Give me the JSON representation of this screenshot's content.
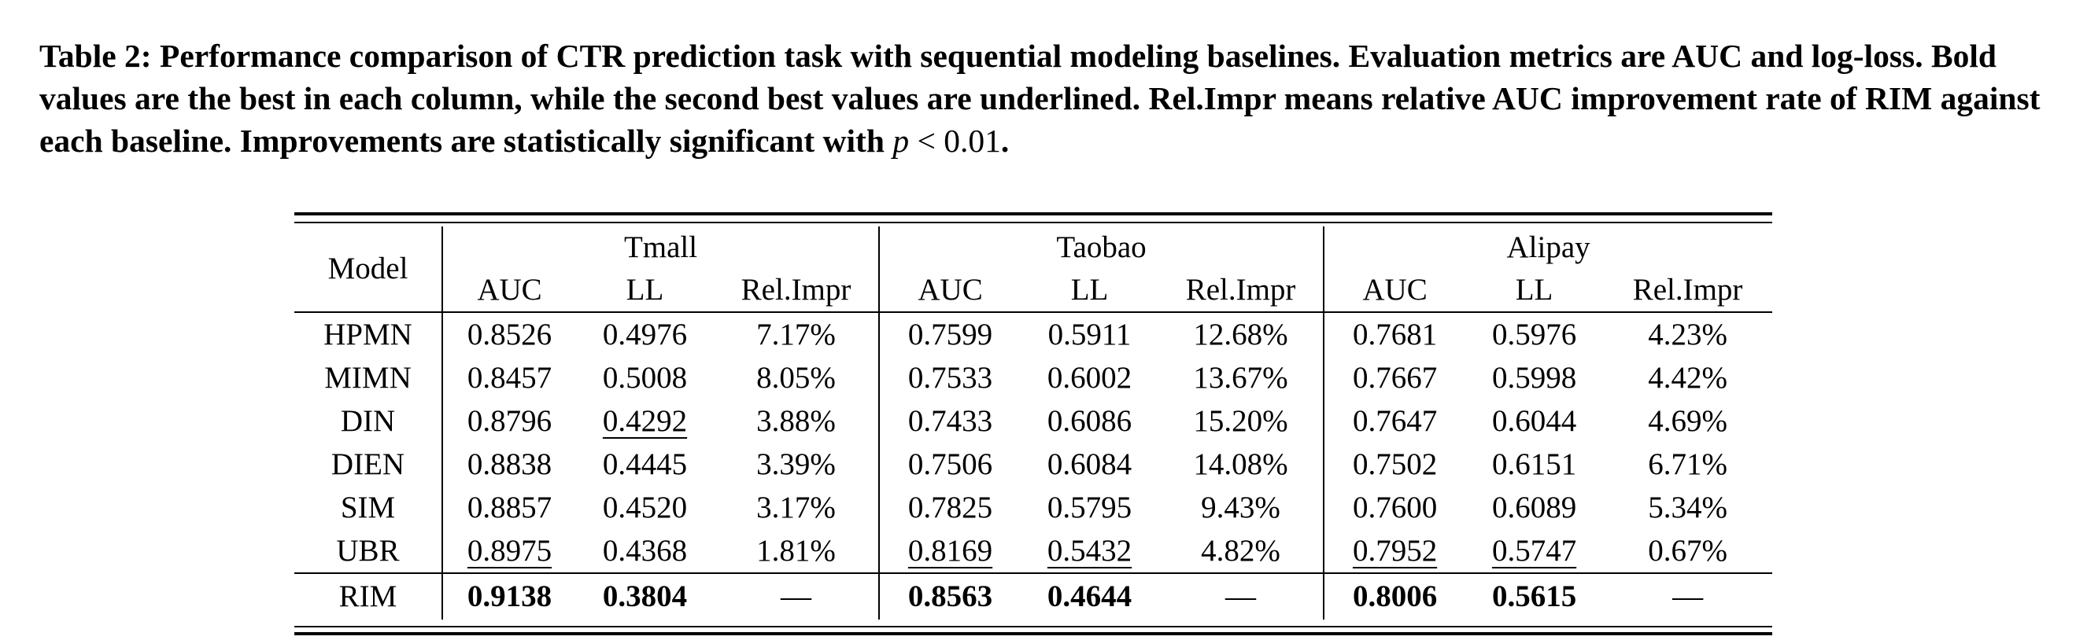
{
  "caption": {
    "label": "Table 2:",
    "text": "Performance comparison of CTR prediction task with sequential modeling baselines. Evaluation metrics are AUC and log-loss. Bold values are the best in each column, while the second best values are underlined. Rel.Impr means relative AUC improvement rate of RIM against each baseline. Improvements are statistically significant with",
    "p_symbol": "p",
    "comparison": "< 0.01",
    "end": "."
  },
  "table": {
    "model_header": "Model",
    "groups": [
      "Tmall",
      "Taobao",
      "Alipay"
    ],
    "sub_headers": [
      "AUC",
      "LL",
      "Rel.Impr"
    ],
    "rows": [
      {
        "model": "HPMN",
        "cells": [
          "0.8526",
          "0.4976",
          "7.17%",
          "0.7599",
          "0.5911",
          "12.68%",
          "0.7681",
          "0.5976",
          "4.23%"
        ]
      },
      {
        "model": "MIMN",
        "cells": [
          "0.8457",
          "0.5008",
          "8.05%",
          "0.7533",
          "0.6002",
          "13.67%",
          "0.7667",
          "0.5998",
          "4.42%"
        ]
      },
      {
        "model": "DIN",
        "cells": [
          "0.8796",
          "0.4292",
          "3.88%",
          "0.7433",
          "0.6086",
          "15.20%",
          "0.7647",
          "0.6044",
          "4.69%"
        ]
      },
      {
        "model": "DIEN",
        "cells": [
          "0.8838",
          "0.4445",
          "3.39%",
          "0.7506",
          "0.6084",
          "14.08%",
          "0.7502",
          "0.6151",
          "6.71%"
        ]
      },
      {
        "model": "SIM",
        "cells": [
          "0.8857",
          "0.4520",
          "3.17%",
          "0.7825",
          "0.5795",
          "9.43%",
          "0.7600",
          "0.6089",
          "5.34%"
        ]
      },
      {
        "model": "UBR",
        "cells": [
          "0.8975",
          "0.4368",
          "1.81%",
          "0.8169",
          "0.5432",
          "4.82%",
          "0.7952",
          "0.5747",
          "0.67%"
        ]
      },
      {
        "model": "RIM",
        "cells": [
          "0.9138",
          "0.3804",
          "—",
          "0.8563",
          "0.4644",
          "—",
          "0.8006",
          "0.5615",
          "—"
        ]
      }
    ],
    "underlined": [
      [
        2,
        1
      ],
      [
        5,
        0
      ],
      [
        5,
        3
      ],
      [
        5,
        4
      ],
      [
        5,
        6
      ],
      [
        5,
        7
      ]
    ],
    "bold_row": 6
  }
}
